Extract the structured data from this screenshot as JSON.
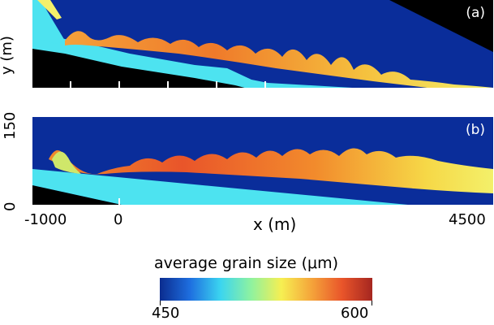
{
  "panel_a": {
    "label": "(a)"
  },
  "panel_b": {
    "label": "(b)"
  },
  "y_axis": {
    "label_a": "y (m)",
    "tick_top": "150",
    "tick_bottom": "0"
  },
  "x_axis": {
    "label": "x (m)",
    "tick_left": "-1000",
    "tick_zero": "0",
    "tick_right": "4500"
  },
  "colorbar": {
    "title": "average grain size (μm)",
    "min": "450",
    "max": "600",
    "colors": [
      "#0b2c8f",
      "#1e6fe0",
      "#3bd5f0",
      "#8ef2a0",
      "#f6ef52",
      "#f5a43a",
      "#e9552a",
      "#a52620"
    ]
  },
  "colors": {
    "deep_water": "#0a2d9a",
    "shallow_bed": "#4de3f0",
    "background": "#000000",
    "orange": "#f28b2c",
    "yellow": "#f6d847",
    "red": "#e2462a"
  }
}
